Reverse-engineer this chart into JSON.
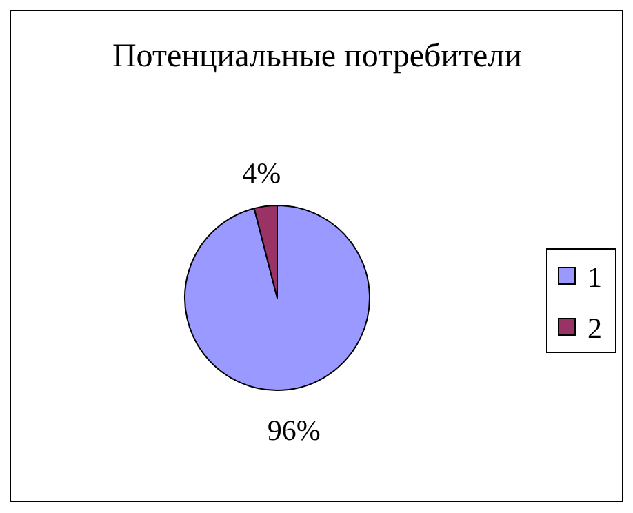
{
  "chart_data": {
    "type": "pie",
    "title": "Потенциальные потребители",
    "categories": [
      "1",
      "2"
    ],
    "values": [
      96,
      4
    ],
    "colors": [
      "#9999ff",
      "#993366"
    ],
    "value_labels": [
      "96%",
      "4%"
    ],
    "legend": "right"
  }
}
